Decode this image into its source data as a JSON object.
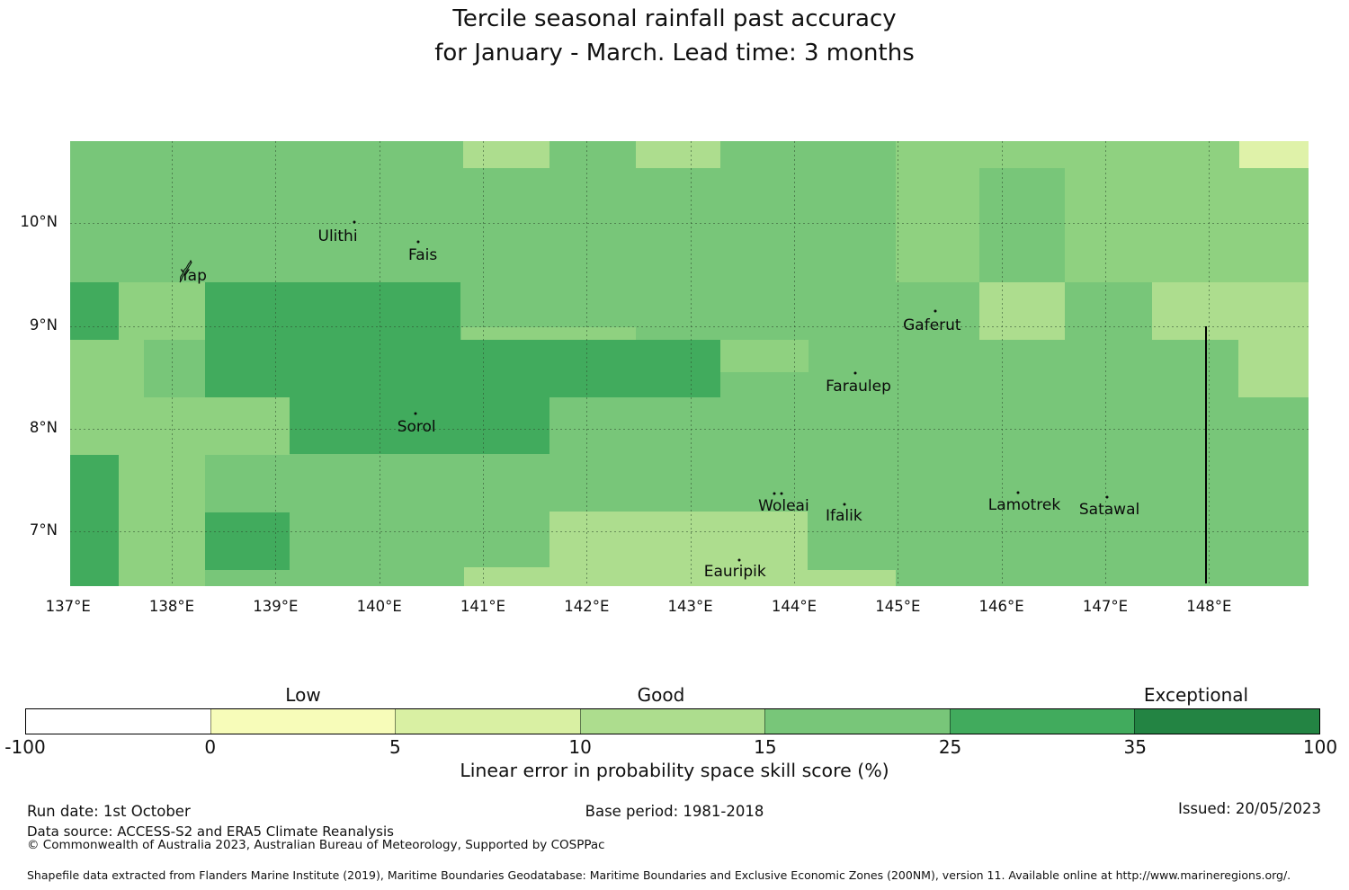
{
  "title": {
    "line1": "Tercile seasonal rainfall past accuracy",
    "line2": "for January - March. Lead time: 3 months"
  },
  "chart_data": {
    "type": "heatmap",
    "description": "Gridded map of seasonal rainfall forecast past accuracy (LEPS skill score, %) over the Yap State region, Federated States of Micronesia",
    "axes": {
      "lon_min": 137.02,
      "lon_max": 148.96,
      "lat_min": 6.47,
      "lat_max": 10.8,
      "grid_on": true,
      "x_ticks": [
        {
          "lon": 137,
          "label": "137°E"
        },
        {
          "lon": 138,
          "label": "138°E"
        },
        {
          "lon": 139,
          "label": "139°E"
        },
        {
          "lon": 140,
          "label": "140°E"
        },
        {
          "lon": 141,
          "label": "141°E"
        },
        {
          "lon": 142,
          "label": "142°E"
        },
        {
          "lon": 143,
          "label": "143°E"
        },
        {
          "lon": 144,
          "label": "144°E"
        },
        {
          "lon": 145,
          "label": "145°E"
        },
        {
          "lon": 146,
          "label": "146°E"
        },
        {
          "lon": 147,
          "label": "147°E"
        },
        {
          "lon": 148,
          "label": "148°E"
        }
      ],
      "y_ticks": [
        {
          "lat": 10,
          "label": "10°N"
        },
        {
          "lat": 9,
          "label": "9°N"
        },
        {
          "lat": 8,
          "label": "8°N"
        },
        {
          "lat": 7,
          "label": "7°N"
        }
      ],
      "grid_lons": [
        138,
        139,
        140,
        141,
        142,
        143,
        144,
        145,
        146,
        147,
        148
      ],
      "grid_lats": [
        7,
        8,
        9,
        10
      ]
    },
    "base_fill": {
      "skill_bin": "15-25",
      "value": 20,
      "color": "#78c679"
    },
    "regions": [
      {
        "lon1": 137.0,
        "lon2": 137.49,
        "lat1": 9.43,
        "lat2": 8.87,
        "skill_bin": "25-35",
        "value": 28,
        "color": "#41ab5d"
      },
      {
        "lon1": 137.0,
        "lon2": 137.49,
        "lat1": 7.75,
        "lat2": 6.47,
        "skill_bin": "25-35",
        "value": 28,
        "color": "#41ab5d"
      },
      {
        "lon1": 138.32,
        "lon2": 140.78,
        "lat1": 9.43,
        "lat2": 8.87,
        "skill_bin": "25-35",
        "value": 28,
        "color": "#41ab5d"
      },
      {
        "lon1": 138.32,
        "lon2": 139.14,
        "lat1": 8.87,
        "lat2": 8.31,
        "skill_bin": "25-35",
        "value": 28,
        "color": "#41ab5d"
      },
      {
        "lon1": 139.14,
        "lon2": 141.64,
        "lat1": 8.87,
        "lat2": 7.76,
        "skill_bin": "25-35",
        "value": 28,
        "color": "#41ab5d"
      },
      {
        "lon1": 141.64,
        "lon2": 143.29,
        "lat1": 8.87,
        "lat2": 8.31,
        "skill_bin": "25-35",
        "value": 28,
        "color": "#41ab5d"
      },
      {
        "lon1": 138.32,
        "lon2": 139.14,
        "lat1": 7.19,
        "lat2": 6.63,
        "skill_bin": "25-35",
        "value": 28,
        "color": "#41ab5d"
      },
      {
        "lon1": 137.49,
        "lon2": 138.32,
        "lat1": 9.43,
        "lat2": 8.87,
        "skill_bin": "10-15",
        "value": 14,
        "color": "#8fd180"
      },
      {
        "lon1": 137.0,
        "lon2": 137.73,
        "lat1": 8.87,
        "lat2": 7.75,
        "skill_bin": "10-15",
        "value": 14,
        "color": "#8fd180"
      },
      {
        "lon1": 137.73,
        "lon2": 139.14,
        "lat1": 8.31,
        "lat2": 7.75,
        "skill_bin": "10-15",
        "value": 14,
        "color": "#8fd180"
      },
      {
        "lon1": 140.79,
        "lon2": 142.47,
        "lat1": 8.99,
        "lat2": 8.87,
        "skill_bin": "10-15",
        "value": 14,
        "color": "#8fd180"
      },
      {
        "lon1": 144.98,
        "lon2": 145.79,
        "lat1": 10.8,
        "lat2": 9.43,
        "skill_bin": "10-15",
        "value": 14,
        "color": "#8fd180"
      },
      {
        "lon1": 145.79,
        "lon2": 148.29,
        "lat1": 10.8,
        "lat2": 10.54,
        "skill_bin": "10-15",
        "value": 14,
        "color": "#8fd180"
      },
      {
        "lon1": 146.61,
        "lon2": 148.96,
        "lat1": 10.54,
        "lat2": 9.43,
        "skill_bin": "10-15",
        "value": 14,
        "color": "#8fd180"
      },
      {
        "lon1": 143.29,
        "lon2": 144.14,
        "lat1": 8.87,
        "lat2": 8.55,
        "skill_bin": "10-15",
        "value": 14,
        "color": "#8fd180"
      },
      {
        "lon1": 137.49,
        "lon2": 138.32,
        "lat1": 7.75,
        "lat2": 6.47,
        "skill_bin": "10-15",
        "value": 14,
        "color": "#8fd180"
      },
      {
        "lon1": 145.79,
        "lon2": 146.61,
        "lat1": 9.43,
        "lat2": 8.87,
        "skill_bin": "10-15",
        "value": 11,
        "color": "#addd8e"
      },
      {
        "lon1": 147.45,
        "lon2": 148.96,
        "lat1": 9.43,
        "lat2": 8.87,
        "skill_bin": "10-15",
        "value": 11,
        "color": "#addd8e"
      },
      {
        "lon1": 148.28,
        "lon2": 148.96,
        "lat1": 8.87,
        "lat2": 8.31,
        "skill_bin": "10-15",
        "value": 11,
        "color": "#addd8e"
      },
      {
        "lon1": 140.81,
        "lon2": 141.64,
        "lat1": 10.8,
        "lat2": 10.54,
        "skill_bin": "10-15",
        "value": 11,
        "color": "#addd8e"
      },
      {
        "lon1": 142.47,
        "lon2": 143.29,
        "lat1": 10.8,
        "lat2": 10.54,
        "skill_bin": "10-15",
        "value": 11,
        "color": "#addd8e"
      },
      {
        "lon1": 141.64,
        "lon2": 144.13,
        "lat1": 7.2,
        "lat2": 6.47,
        "skill_bin": "10-15",
        "value": 11,
        "color": "#addd8e"
      },
      {
        "lon1": 140.82,
        "lon2": 141.64,
        "lat1": 6.65,
        "lat2": 6.47,
        "skill_bin": "10-15",
        "value": 11,
        "color": "#addd8e"
      },
      {
        "lon1": 144.13,
        "lon2": 144.98,
        "lat1": 6.63,
        "lat2": 6.47,
        "skill_bin": "10-15",
        "value": 11,
        "color": "#addd8e"
      },
      {
        "lon1": 148.29,
        "lon2": 148.96,
        "lat1": 10.8,
        "lat2": 10.54,
        "skill_bin": "5-10",
        "value": 7,
        "color": "#dff2a9"
      }
    ],
    "islands": [
      {
        "name": "Yap",
        "lon": 138.21,
        "lat": 9.49,
        "marker": "archipelago",
        "marker_lon": 138.13,
        "marker_lat": 9.53
      },
      {
        "name": "Ulithi",
        "lon": 139.6,
        "lat": 9.87,
        "marker": "dot",
        "marker_lon": 139.76,
        "marker_lat": 10.01
      },
      {
        "name": "Fais",
        "lon": 140.42,
        "lat": 9.69,
        "marker": "dot",
        "marker_lon": 140.38,
        "marker_lat": 9.82
      },
      {
        "name": "Sorol",
        "lon": 140.36,
        "lat": 8.02,
        "marker": "dot",
        "marker_lon": 140.35,
        "marker_lat": 8.15
      },
      {
        "name": "Gaferut",
        "lon": 145.33,
        "lat": 9.01,
        "marker": "dot",
        "marker_lon": 145.36,
        "marker_lat": 9.15
      },
      {
        "name": "Faraulep",
        "lon": 144.62,
        "lat": 8.41,
        "marker": "dot",
        "marker_lon": 144.59,
        "marker_lat": 8.54
      },
      {
        "name": "Woleai",
        "lon": 143.9,
        "lat": 7.25,
        "marker": "dots2",
        "marker_lon": 143.81,
        "marker_lat": 7.37
      },
      {
        "name": "Ifalik",
        "lon": 144.48,
        "lat": 7.15,
        "marker": "dot",
        "marker_lon": 144.49,
        "marker_lat": 7.27
      },
      {
        "name": "Eauripik",
        "lon": 143.43,
        "lat": 6.61,
        "marker": "dot",
        "marker_lon": 143.47,
        "marker_lat": 6.72
      },
      {
        "name": "Lamotrek",
        "lon": 146.22,
        "lat": 7.26,
        "marker": "dot",
        "marker_lon": 146.16,
        "marker_lat": 7.38
      },
      {
        "name": "Satawal",
        "lon": 147.04,
        "lat": 7.21,
        "marker": "dot",
        "marker_lon": 147.02,
        "marker_lat": 7.34
      }
    ],
    "eez_boundary_line": {
      "lon": 147.96,
      "lat_from": 9.0,
      "lat_to": 6.5,
      "color": "#000000"
    }
  },
  "colorbar": {
    "boundaries": [
      "-100",
      "0",
      "5",
      "10",
      "15",
      "25",
      "35",
      "100"
    ],
    "colors": [
      "#ffffff",
      "#f7fcb9",
      "#d9f0a3",
      "#addd8e",
      "#78c679",
      "#41ab5d",
      "#238443"
    ],
    "zone_labels": [
      {
        "text": "Low",
        "x": 337
      },
      {
        "text": "Good",
        "x": 735
      },
      {
        "text": "Exceptional",
        "x": 1330
      }
    ],
    "axis_title": "Linear error in probability space skill score (%)"
  },
  "footer": {
    "run_date": "Run date: 1st October",
    "base_period": "Base period: 1981-2018",
    "issued": "Issued: 20/05/2023",
    "data_source": "Data source: ACCESS-S2 and ERA5 Climate Reanalysis",
    "copyright": "© Commonwealth of Australia 2023, Australian Bureau of Meteorology, Supported by COSPPac",
    "shapefile_note": "Shapefile data extracted from Flanders Marine Institute (2019), Maritime Boundaries Geodatabase: Maritime Boundaries and Exclusive Economic Zones (200NM), version 11. Available online at http://www.marineregions.org/."
  }
}
